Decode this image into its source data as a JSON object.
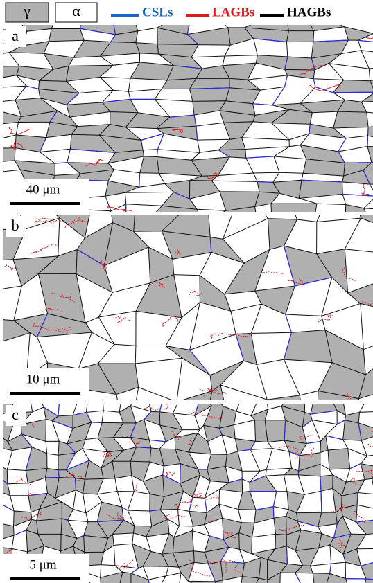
{
  "legend": {
    "phases": [
      {
        "symbol": "γ"
      },
      {
        "symbol": "α"
      }
    ],
    "boundaries": [
      {
        "label": "CSLs"
      },
      {
        "label": "LAGBs"
      },
      {
        "label": "HAGBs"
      }
    ]
  },
  "panels": [
    {
      "label": "a",
      "scale_bar": "40 μm"
    },
    {
      "label": "b",
      "scale_bar": "10 μm"
    },
    {
      "label": "c",
      "scale_bar": "5 μm"
    }
  ]
}
